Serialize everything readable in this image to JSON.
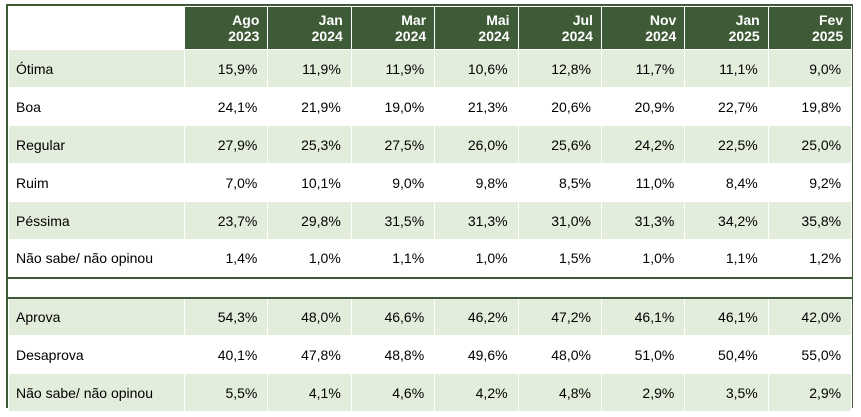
{
  "header": {
    "periods": [
      {
        "month": "Ago",
        "year": "2023"
      },
      {
        "month": "Jan",
        "year": "2024"
      },
      {
        "month": "Mar",
        "year": "2024"
      },
      {
        "month": "Mai",
        "year": "2024"
      },
      {
        "month": "Jul",
        "year": "2024"
      },
      {
        "month": "Nov",
        "year": "2024"
      },
      {
        "month": "Jan",
        "year": "2025"
      },
      {
        "month": "Fev",
        "year": "2025"
      }
    ]
  },
  "evaluation": [
    {
      "label": "Ótima",
      "values": [
        "15,9%",
        "11,9%",
        "11,9%",
        "10,6%",
        "12,8%",
        "11,7%",
        "11,1%",
        "9,0%"
      ]
    },
    {
      "label": "Boa",
      "values": [
        "24,1%",
        "21,9%",
        "19,0%",
        "21,3%",
        "20,6%",
        "20,9%",
        "22,7%",
        "19,8%"
      ]
    },
    {
      "label": "Regular",
      "values": [
        "27,9%",
        "25,3%",
        "27,5%",
        "26,0%",
        "25,6%",
        "24,2%",
        "22,5%",
        "25,0%"
      ]
    },
    {
      "label": "Ruim",
      "values": [
        "7,0%",
        "10,1%",
        "9,0%",
        "9,8%",
        "8,5%",
        "11,0%",
        "8,4%",
        "9,2%"
      ]
    },
    {
      "label": "Péssima",
      "values": [
        "23,7%",
        "29,8%",
        "31,5%",
        "31,3%",
        "31,0%",
        "31,3%",
        "34,2%",
        "35,8%"
      ]
    },
    {
      "label": "Não sabe/ não opinou",
      "values": [
        "1,4%",
        "1,0%",
        "1,1%",
        "1,0%",
        "1,5%",
        "1,0%",
        "1,1%",
        "1,2%"
      ]
    }
  ],
  "approval": [
    {
      "label": "Aprova",
      "values": [
        "54,3%",
        "48,0%",
        "46,6%",
        "46,2%",
        "47,2%",
        "46,1%",
        "46,1%",
        "42,0%"
      ]
    },
    {
      "label": "Desaprova",
      "values": [
        "40,1%",
        "47,8%",
        "48,8%",
        "49,6%",
        "48,0%",
        "51,0%",
        "50,4%",
        "55,0%"
      ]
    },
    {
      "label": "Não sabe/ não opinou",
      "values": [
        "5,5%",
        "4,1%",
        "4,6%",
        "4,2%",
        "4,8%",
        "2,9%",
        "3,5%",
        "2,9%"
      ]
    }
  ],
  "colors": {
    "header_green": "#3f5a37",
    "row_tint": "#e3eddb"
  }
}
